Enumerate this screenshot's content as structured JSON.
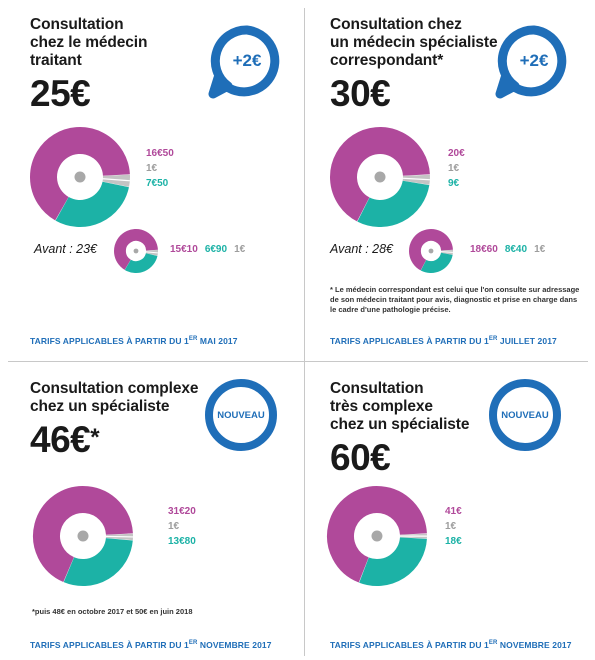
{
  "colors": {
    "pink": "#b0499a",
    "gray": "#c4c4c4",
    "teal": "#1cb2a6",
    "blue": "#1f6eb8"
  },
  "panels": [
    {
      "title_lines": [
        "Consultation",
        "chez le médecin",
        "traitant"
      ],
      "price": "25€",
      "price_mark": "",
      "badge": "+2€",
      "values": [
        "16€50",
        "1€",
        "7€50"
      ],
      "avant_label": "Avant : 23€",
      "avant_values": [
        "15€10",
        "6€90",
        "1€"
      ],
      "note_lines": [],
      "footer": "TARIFS APPLICABLES À PARTIR DU 1",
      "footer_sup": "ER",
      "footer_end": " MAI 2017"
    },
    {
      "title_lines": [
        "Consultation chez",
        "un médecin spécialiste",
        "correspondant*"
      ],
      "price": "30€",
      "price_mark": "",
      "badge": "+2€",
      "values": [
        "20€",
        "1€",
        "9€"
      ],
      "avant_label": "Avant : 28€",
      "avant_values": [
        "18€60",
        "8€40",
        "1€"
      ],
      "note_lines": [
        "* Le médecin correspondant est celui que l'on consulte sur adressage",
        "de son  médecin traitant pour avis, diagnostic et prise en charge dans",
        "le cadre d'une pathologie précise."
      ],
      "footer": "TARIFS APPLICABLES À PARTIR DU 1",
      "footer_sup": "ER",
      "footer_end": " JUILLET 2017"
    },
    {
      "title_lines": [
        "Consultation complexe",
        "chez un spécialiste"
      ],
      "price": "46€",
      "price_mark": "*",
      "badge": "NOUVEAU",
      "values": [
        "31€20",
        "1€",
        "13€80"
      ],
      "avant_label": "",
      "avant_values": [],
      "note_lines": [
        "*puis 48€ en octobre 2017 et 50€ en juin 2018"
      ],
      "footer": "TARIFS APPLICABLES  À PARTIR DU 1",
      "footer_sup": "ER",
      "footer_end": " NOVEMBRE 2017"
    },
    {
      "title_lines": [
        "Consultation",
        "très complexe",
        "chez un spécialiste"
      ],
      "price": "60€",
      "price_mark": "",
      "badge": "NOUVEAU",
      "values": [
        "41€",
        "1€",
        "18€"
      ],
      "avant_label": "",
      "avant_values": [],
      "note_lines": [],
      "footer": "TARIFS APPLICABLES  À PARTIR DU 1",
      "footer_sup": "ER",
      "footer_end": " NOVEMBRE 2017"
    }
  ],
  "chart_data": [
    {
      "type": "pie",
      "categories": [
        "16€50",
        "1€",
        "7€50"
      ],
      "values": [
        16.5,
        1,
        7.5
      ],
      "total": 25
    },
    {
      "type": "pie",
      "categories": [
        "15€10",
        "1€",
        "6€90"
      ],
      "values": [
        15.1,
        1,
        6.9
      ],
      "total": 23
    },
    {
      "type": "pie",
      "categories": [
        "20€",
        "1€",
        "9€"
      ],
      "values": [
        20,
        1,
        9
      ],
      "total": 30
    },
    {
      "type": "pie",
      "categories": [
        "18€60",
        "1€",
        "8€40"
      ],
      "values": [
        18.6,
        1,
        8.4
      ],
      "total": 28
    },
    {
      "type": "pie",
      "categories": [
        "31€20",
        "1€",
        "13€80"
      ],
      "values": [
        31.2,
        1,
        13.8
      ],
      "total": 46
    },
    {
      "type": "pie",
      "categories": [
        "41€",
        "1€",
        "18€"
      ],
      "values": [
        41,
        1,
        18
      ],
      "total": 60
    }
  ]
}
